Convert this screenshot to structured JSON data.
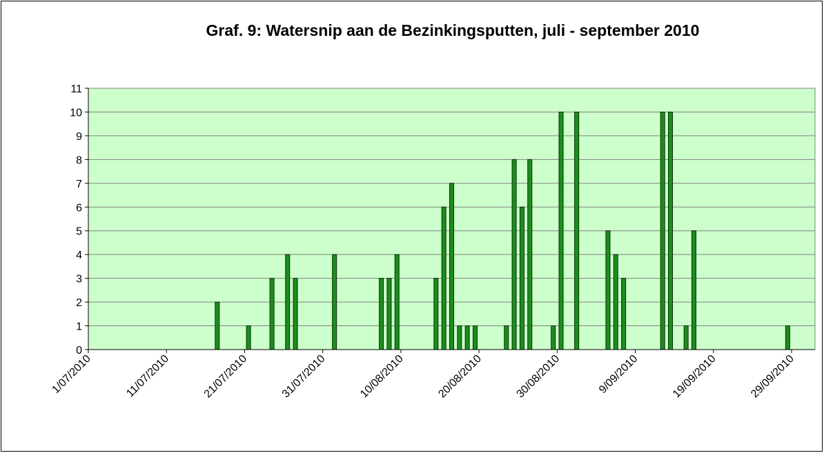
{
  "chart_data": {
    "type": "bar",
    "title": "Graf. 9: Watersnip aan de Bezinkingsputten, juli - september 2010",
    "x": [
      "17/07/2010",
      "21/07/2010",
      "24/07/2010",
      "26/07/2010",
      "27/07/2010",
      "1/08/2010",
      "7/08/2010",
      "8/08/2010",
      "9/08/2010",
      "14/08/2010",
      "15/08/2010",
      "16/08/2010",
      "17/08/2010",
      "18/08/2010",
      "19/08/2010",
      "23/08/2010",
      "24/08/2010",
      "25/08/2010",
      "26/08/2010",
      "29/08/2010",
      "30/08/2010",
      "1/09/2010",
      "5/09/2010",
      "6/09/2010",
      "7/09/2010",
      "12/09/2010",
      "13/09/2010",
      "15/09/2010",
      "16/09/2010",
      "28/09/2010"
    ],
    "values": [
      2,
      1,
      3,
      4,
      3,
      4,
      3,
      3,
      4,
      3,
      6,
      7,
      1,
      1,
      1,
      1,
      8,
      6,
      8,
      1,
      10,
      10,
      5,
      4,
      3,
      10,
      10,
      1,
      5,
      1
    ],
    "color": "#1e8c1e",
    "xlim": [
      "1/07/2010",
      "2/10/2010"
    ],
    "xticks": [
      "1/07/2010",
      "11/07/2010",
      "21/07/2010",
      "31/07/2010",
      "10/08/2010",
      "20/08/2010",
      "30/08/2010",
      "9/09/2010",
      "19/09/2010",
      "29/09/2010"
    ],
    "ylim": [
      0,
      11
    ],
    "yticks": [
      0,
      1,
      2,
      3,
      4,
      5,
      6,
      7,
      8,
      9,
      10,
      11
    ],
    "grid": true
  }
}
